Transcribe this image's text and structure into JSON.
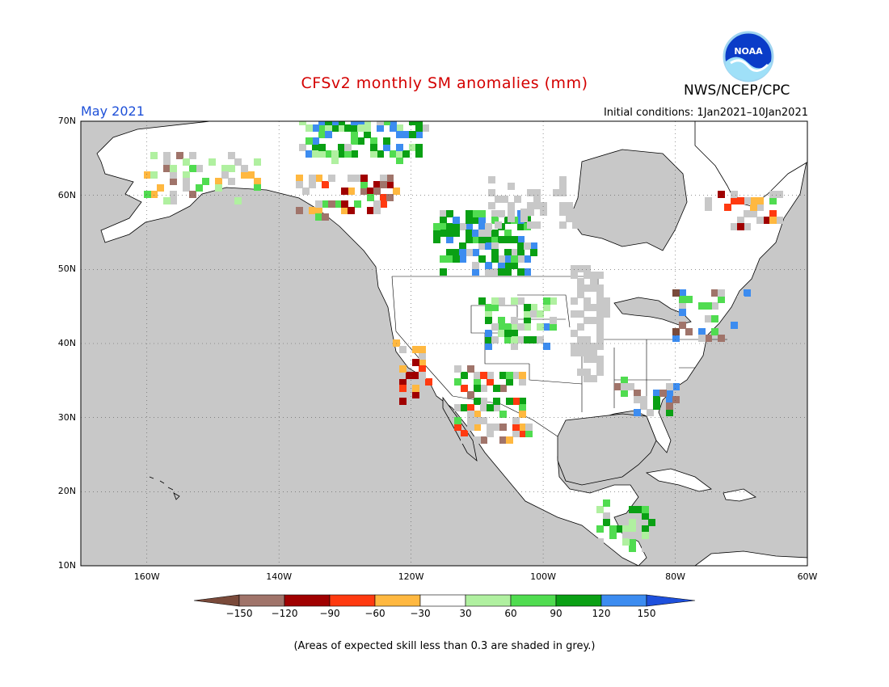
{
  "header": {
    "title": "CFSv2 monthly SM anomalies (mm)",
    "agency": "NWS/NCEP/CPC",
    "logo_text": "NOAA",
    "period": "May 2021",
    "initial_conditions": "Initial conditions: 1Jan2021–10Jan2021"
  },
  "map": {
    "lat_labels": [
      "70N",
      "60N",
      "50N",
      "40N",
      "30N",
      "20N",
      "10N"
    ],
    "lon_labels": [
      "160W",
      "140W",
      "120W",
      "100W",
      "80W",
      "60W"
    ],
    "lat_range": [
      10,
      70
    ],
    "lon_range": [
      -170,
      -60
    ],
    "grid": true,
    "colors": {
      "ocean_skill_mask": "#c8c8c8",
      "land": "#ffffff",
      "coastline": "#000000"
    }
  },
  "legend": {
    "labels": [
      "−150",
      "−120",
      "−90",
      "−60",
      "−30",
      "30",
      "60",
      "90",
      "120",
      "150"
    ],
    "colors": [
      "#7a4a3a",
      "#a0746a",
      "#a00000",
      "#ff3a10",
      "#ffb840",
      "#ffffff",
      "#b0f0a0",
      "#50dc50",
      "#0aa014",
      "#3c8cf0",
      "#1e50dc"
    ]
  },
  "footnote": "(Areas of expected skill less than 0.3 are shaded in grey.)"
}
